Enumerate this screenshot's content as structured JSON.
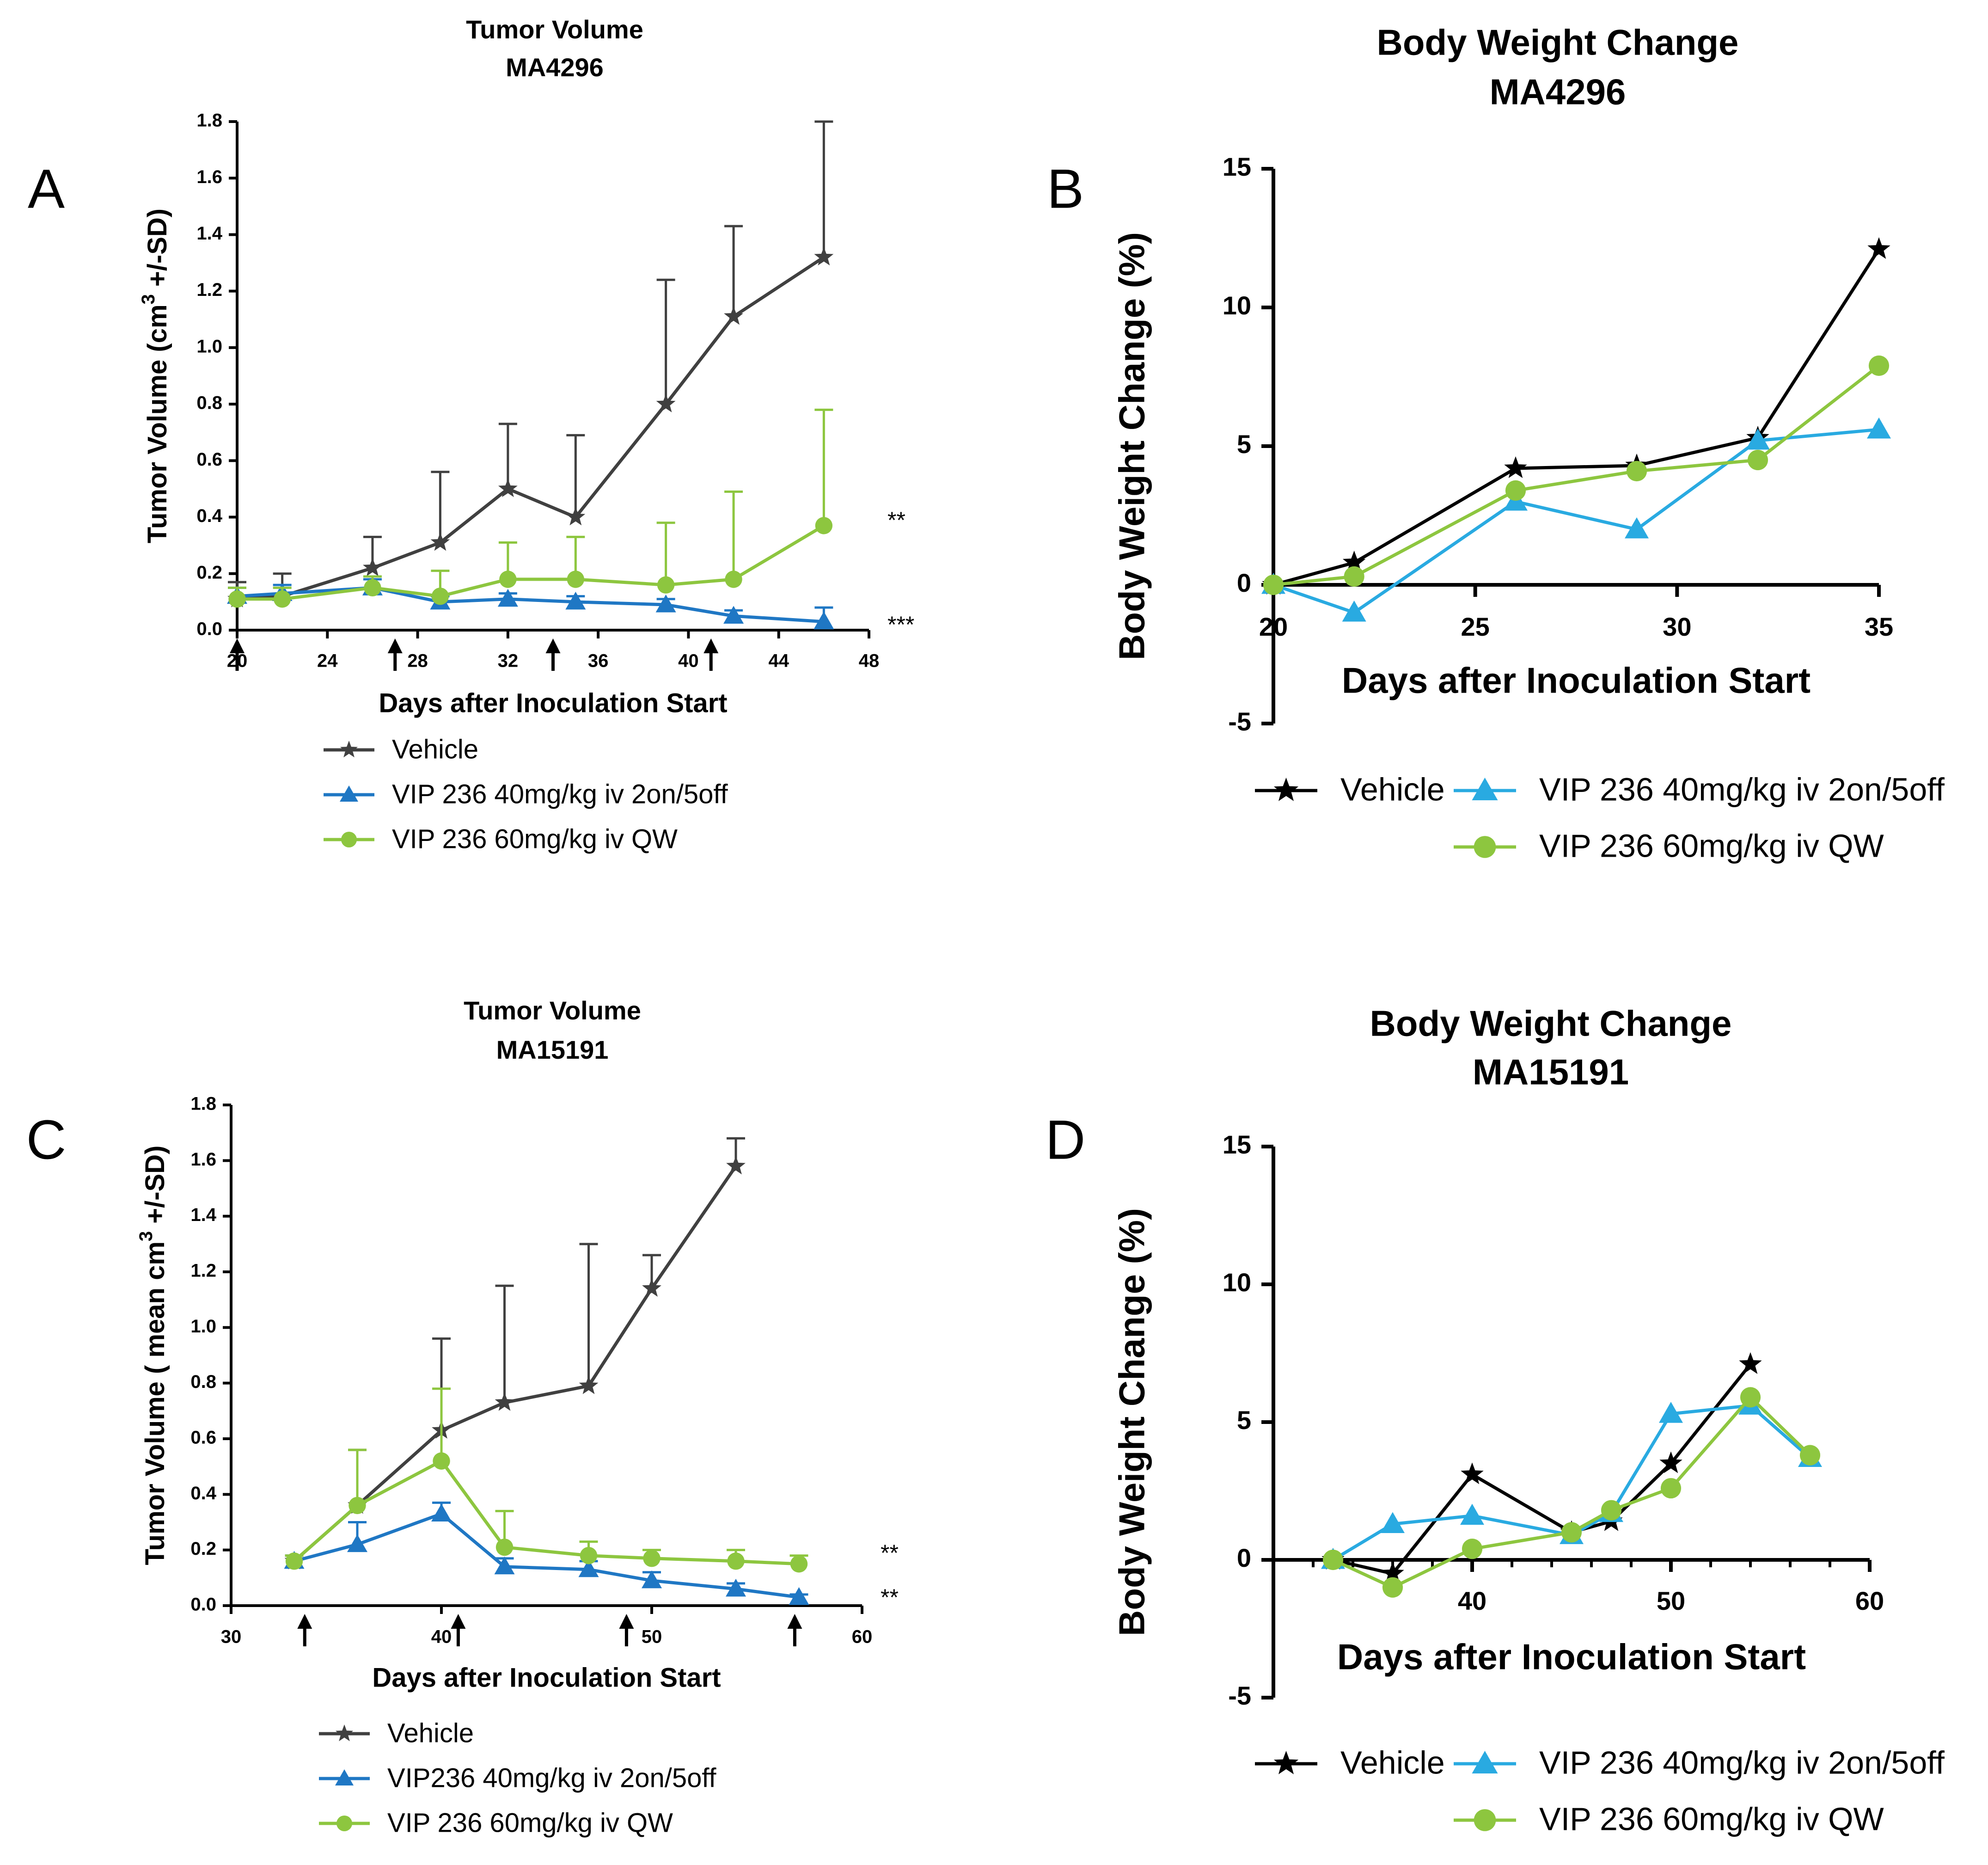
{
  "colors": {
    "vehicle_tv": "#404040",
    "blue_tv": "#1f77c4",
    "green": "#8dc63f",
    "vehicle_bw": "#000000",
    "blue_bw": "#29aae1",
    "axis": "#000000"
  },
  "chart_data": [
    {
      "id": "A",
      "panel_label": "A",
      "type": "line",
      "title": "Tumor Volume",
      "subtitle": "MA4296",
      "xlabel": "Days after Inoculation Start",
      "ylabel_pre": "Tumor Volume (cm",
      "ylabel_sup": "3",
      "ylabel_post": " +/-SD)",
      "xlim": [
        20,
        48
      ],
      "ylim": [
        0,
        1.8
      ],
      "xticks": [
        20,
        24,
        28,
        32,
        36,
        40,
        44,
        48
      ],
      "yticks": [
        0.0,
        0.2,
        0.4,
        0.6,
        0.8,
        1.0,
        1.2,
        1.4,
        1.6,
        1.8
      ],
      "ytick_decimals": 1,
      "dosing_days": [
        20,
        27,
        34,
        41
      ],
      "series": [
        {
          "name": "Vehicle",
          "marker": "star",
          "color_key": "vehicle_tv",
          "x": [
            20,
            22,
            26,
            29,
            32,
            35,
            39,
            42,
            46
          ],
          "y": [
            0.11,
            0.12,
            0.22,
            0.31,
            0.5,
            0.4,
            0.8,
            1.11,
            1.32
          ],
          "err": [
            0.06,
            0.08,
            0.11,
            0.25,
            0.23,
            0.29,
            0.44,
            0.32,
            0.48
          ]
        },
        {
          "name": "VIP 236 40mg/kg iv 2on/5off",
          "marker": "triangle",
          "color_key": "blue_tv",
          "x": [
            20,
            22,
            26,
            29,
            32,
            35,
            39,
            42,
            46
          ],
          "y": [
            0.12,
            0.13,
            0.15,
            0.1,
            0.11,
            0.1,
            0.09,
            0.05,
            0.03
          ],
          "err": [
            0.03,
            0.03,
            0.03,
            0.02,
            0.02,
            0.02,
            0.02,
            0.02,
            0.05
          ]
        },
        {
          "name": "VIP 236 60mg/kg iv QW",
          "marker": "circle",
          "color_key": "green",
          "x": [
            20,
            22,
            26,
            29,
            32,
            35,
            39,
            42,
            46
          ],
          "y": [
            0.11,
            0.11,
            0.15,
            0.12,
            0.18,
            0.18,
            0.16,
            0.18,
            0.37
          ],
          "err": [
            0.04,
            0.04,
            0.04,
            0.09,
            0.13,
            0.15,
            0.22,
            0.31,
            0.41
          ]
        }
      ],
      "significance": [
        {
          "label": "**",
          "y": 0.4
        },
        {
          "label": "***",
          "y": 0.03
        }
      ]
    },
    {
      "id": "B",
      "panel_label": "B",
      "type": "line",
      "title": "Body Weight Change",
      "subtitle": "MA4296",
      "xlabel": "Days after Inoculation Start",
      "ylabel": "Body Weight Change (%)",
      "xlim": [
        20,
        35
      ],
      "ylim": [
        -5,
        15
      ],
      "xticks": [
        20,
        25,
        30,
        35
      ],
      "yticks": [
        -5,
        0,
        5,
        10,
        15
      ],
      "series": [
        {
          "name": "Vehicle",
          "marker": "star",
          "color_key": "vehicle_bw",
          "x": [
            20,
            22,
            26,
            29,
            32,
            35
          ],
          "y": [
            0,
            0.8,
            4.2,
            4.3,
            5.3,
            12.1
          ]
        },
        {
          "name": "VIP 236 40mg/kg iv 2on/5off",
          "marker": "triangle",
          "color_key": "blue_bw",
          "x": [
            20,
            22,
            26,
            29,
            32,
            35
          ],
          "y": [
            0,
            -1.0,
            3.0,
            2.0,
            5.2,
            5.6
          ]
        },
        {
          "name": "VIP 236 60mg/kg iv QW",
          "marker": "circle",
          "color_key": "green",
          "x": [
            20,
            22,
            26,
            29,
            32,
            35
          ],
          "y": [
            0,
            0.3,
            3.4,
            4.1,
            4.5,
            7.9
          ]
        }
      ]
    },
    {
      "id": "C",
      "panel_label": "C",
      "type": "line",
      "title": "Tumor Volume",
      "subtitle": "MA15191",
      "xlabel": "Days after Inoculation Start",
      "ylabel_pre": "Tumor Volume ( mean cm",
      "ylabel_sup": "3",
      "ylabel_post": " +/-SD)",
      "xlim": [
        30,
        60
      ],
      "ylim": [
        0,
        1.8
      ],
      "xticks": [
        30,
        40,
        50,
        60
      ],
      "yticks": [
        0.0,
        0.2,
        0.4,
        0.6,
        0.8,
        1.0,
        1.2,
        1.4,
        1.6,
        1.8
      ],
      "ytick_decimals": 1,
      "dosing_days": [
        33.5,
        40.8,
        48.8,
        56.8
      ],
      "series": [
        {
          "name": "Vehicle",
          "marker": "star",
          "color_key": "vehicle_tv",
          "x": [
            33,
            36,
            40,
            43,
            47,
            50,
            54
          ],
          "y": [
            0.16,
            0.36,
            0.63,
            0.73,
            0.79,
            1.14,
            1.58
          ],
          "err": [
            0.02,
            0.2,
            0.33,
            0.42,
            0.51,
            0.12,
            0.1
          ]
        },
        {
          "name": "VIP236 40mg/kg iv 2on/5off",
          "marker": "triangle",
          "color_key": "blue_tv",
          "x": [
            33,
            36,
            40,
            43,
            47,
            50,
            54,
            57
          ],
          "y": [
            0.16,
            0.22,
            0.33,
            0.14,
            0.13,
            0.09,
            0.06,
            0.03
          ],
          "err": [
            0.02,
            0.08,
            0.04,
            0.03,
            0.03,
            0.03,
            0.02,
            0.01
          ]
        },
        {
          "name": "VIP 236 60mg/kg iv QW",
          "marker": "circle",
          "color_key": "green",
          "x": [
            33,
            36,
            40,
            43,
            47,
            50,
            54,
            57
          ],
          "y": [
            0.16,
            0.36,
            0.52,
            0.21,
            0.18,
            0.17,
            0.16,
            0.15
          ],
          "err": [
            0.02,
            0.2,
            0.26,
            0.13,
            0.05,
            0.03,
            0.04,
            0.03
          ]
        }
      ],
      "significance": [
        {
          "label": "**",
          "y": 0.2
        },
        {
          "label": "**",
          "y": 0.04
        }
      ]
    },
    {
      "id": "D",
      "panel_label": "D",
      "type": "line",
      "title": "Body Weight Change",
      "subtitle": "MA15191",
      "xlabel": "Days after Inoculation Start",
      "ylabel": "Body Weight Change (%)",
      "xlim": [
        30,
        60
      ],
      "ylim": [
        -5,
        15
      ],
      "xticks": [
        40,
        50,
        60
      ],
      "xminor": [
        32,
        34,
        36,
        38,
        42,
        44,
        46,
        48,
        52,
        54,
        56,
        58
      ],
      "yticks": [
        -5,
        0,
        5,
        10,
        15
      ],
      "series": [
        {
          "name": "Vehicle",
          "marker": "star",
          "color_key": "vehicle_bw",
          "x": [
            33,
            36,
            40,
            45,
            47,
            50,
            54
          ],
          "y": [
            0,
            -0.5,
            3.1,
            1.0,
            1.4,
            3.5,
            7.1
          ]
        },
        {
          "name": "VIP 236 40mg/kg iv 2on/5off",
          "marker": "triangle",
          "color_key": "blue_bw",
          "x": [
            33,
            36,
            40,
            45,
            47,
            50,
            54,
            57
          ],
          "y": [
            0,
            1.3,
            1.6,
            0.9,
            1.7,
            5.3,
            5.6,
            3.7
          ]
        },
        {
          "name": "VIP 236 60mg/kg iv QW",
          "marker": "circle",
          "color_key": "green",
          "x": [
            33,
            36,
            40,
            45,
            47,
            50,
            54,
            57
          ],
          "y": [
            0,
            -1.0,
            0.4,
            1.0,
            1.8,
            2.6,
            5.9,
            3.8
          ]
        }
      ]
    }
  ]
}
